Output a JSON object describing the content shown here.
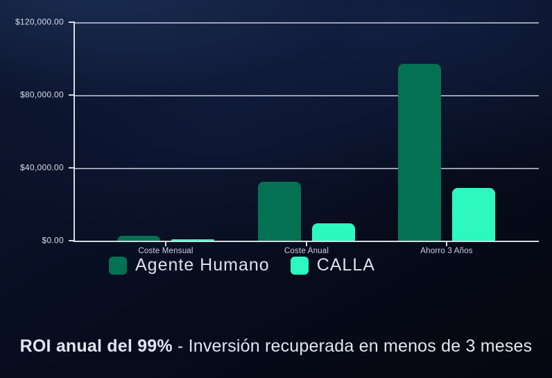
{
  "chart_data": {
    "type": "bar",
    "categories": [
      "Coste Mensual",
      "Coste Anual",
      "Ahorro 3 Años"
    ],
    "series": [
      {
        "name": "Agente Humano",
        "color": "#047152",
        "values": [
          2700,
          32400,
          97200
        ]
      },
      {
        "name": "CALLA",
        "color": "#2df8c0",
        "values": [
          800,
          9600,
          28800
        ]
      }
    ],
    "y_ticks": [
      {
        "label": "$120,000.00",
        "value": 120000
      },
      {
        "label": "$80,000.00",
        "value": 80000
      },
      {
        "label": "$40,000.00",
        "value": 40000
      },
      {
        "label": "$0.00",
        "value": 0
      }
    ],
    "ylim": [
      0,
      120000
    ],
    "grid": true,
    "legend_position": "bottom",
    "title": "",
    "xlabel": "",
    "ylabel": ""
  },
  "legend": {
    "items": [
      {
        "label": "Agente Humano",
        "color": "#047152"
      },
      {
        "label": "CALLA",
        "color": "#2df8c0"
      }
    ]
  },
  "caption": {
    "highlight": "ROI anual del 99%",
    "rest": " - Inversión recuperada en menos de 3 meses"
  },
  "colors": {
    "background_dark": "#05070f",
    "background_light": "#0d1730",
    "axis": "#e8ebf3",
    "gridline": "#c3c8d6",
    "tick_text": "#dadde8",
    "caption_text": "#e2e5f0"
  }
}
